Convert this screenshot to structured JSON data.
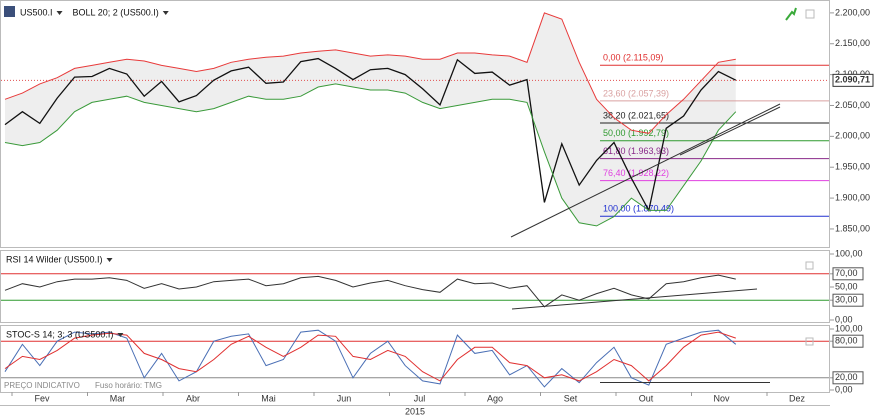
{
  "chart_data": [
    {
      "type": "line",
      "title": "US500.I",
      "indicator": "BOLL 20; 2 (US500.I)",
      "ylim": [
        1824,
        2216
      ],
      "yticks": [
        {
          "value": 1850,
          "label": "1.850,00"
        },
        {
          "value": 1900,
          "label": "1.900,00"
        },
        {
          "value": 1950,
          "label": "1.950,00"
        },
        {
          "value": 2000,
          "label": "2.000,00"
        },
        {
          "value": 2050,
          "label": "2.050,00"
        },
        {
          "value": 2100,
          "label": "2.100,00"
        },
        {
          "value": 2150,
          "label": "2.150,00"
        },
        {
          "value": 2200,
          "label": "2.200,00"
        }
      ],
      "series": [
        {
          "color": "#111111",
          "values": [
            2019,
            2040,
            2021,
            2062,
            2096,
            2097,
            2110,
            2101,
            2065,
            2089,
            2056,
            2066,
            2091,
            2106,
            2112,
            2086,
            2088,
            2121,
            2126,
            2110,
            2092,
            2108,
            2110,
            2100,
            2077,
            2051,
            2124,
            2102,
            2104,
            2083,
            2092,
            1893,
            1988,
            1921,
            1961,
            1990,
            1932,
            1880,
            2013,
            2033,
            2075,
            2105,
            2091
          ]
        },
        {
          "color": "#e83a3a",
          "values": [
            2060,
            2070,
            2085,
            2095,
            2110,
            2115,
            2120,
            2125,
            2122,
            2115,
            2110,
            2105,
            2110,
            2120,
            2125,
            2128,
            2130,
            2135,
            2138,
            2140,
            2135,
            2130,
            2132,
            2130,
            2125,
            2125,
            2135,
            2135,
            2132,
            2130,
            2120,
            2200,
            2190,
            2120,
            2060,
            2030,
            2010,
            2005,
            2035,
            2060,
            2090,
            2120,
            2125
          ]
        },
        {
          "color": "#3a9a3a",
          "values": [
            1990,
            1985,
            1990,
            2010,
            2040,
            2055,
            2060,
            2065,
            2055,
            2050,
            2045,
            2040,
            2045,
            2055,
            2065,
            2060,
            2060,
            2065,
            2080,
            2085,
            2080,
            2075,
            2075,
            2070,
            2055,
            2045,
            2050,
            2055,
            2060,
            2060,
            2055,
            1975,
            1900,
            1860,
            1855,
            1870,
            1900,
            1880,
            1880,
            1920,
            1960,
            2010,
            2040
          ]
        }
      ],
      "band_fill": "#eeeeee",
      "last_price": {
        "value": 2090.71,
        "label": "2.090,71"
      },
      "fib_levels": [
        {
          "label": "0,00 (2.115,09)",
          "value": 2115.09,
          "color": "#e03030"
        },
        {
          "label": "23,60 (2.057,39)",
          "value": 2057.39,
          "color": "#d9a0a0"
        },
        {
          "label": "38,20 (2.021,65)",
          "value": 2021.65,
          "color": "#222222"
        },
        {
          "label": "50,00 (1.992,79)",
          "value": 1992.79,
          "color": "#2f9a2f"
        },
        {
          "label": "61,80 (1.963,93)",
          "value": 1963.93,
          "color": "#8a2a8a"
        },
        {
          "label": "76,40 (1.928,22)",
          "value": 1928.22,
          "color": "#e040e0"
        },
        {
          "label": "100,00 (1.870,49)",
          "value": 1870.49,
          "color": "#2030d0"
        }
      ]
    },
    {
      "type": "line",
      "title": "RSI 14 Wilder (US500.I)",
      "ylim": [
        0,
        100
      ],
      "yticks": [
        {
          "value": 0,
          "label": "0,00"
        },
        {
          "value": 30,
          "label": "30,00"
        },
        {
          "value": 50,
          "label": "50,00"
        },
        {
          "value": 70,
          "label": "70,00"
        },
        {
          "value": 100,
          "label": "100,00"
        }
      ],
      "ref_lines": [
        {
          "value": 70,
          "color": "#e03030"
        },
        {
          "value": 30,
          "color": "#2f9a2f"
        }
      ],
      "series": [
        {
          "color": "#333333",
          "values": [
            45,
            55,
            50,
            58,
            62,
            62,
            64,
            60,
            48,
            55,
            47,
            50,
            58,
            60,
            62,
            52,
            55,
            64,
            66,
            60,
            50,
            56,
            60,
            52,
            46,
            42,
            62,
            55,
            56,
            48,
            52,
            20,
            38,
            30,
            40,
            48,
            38,
            32,
            55,
            58,
            64,
            68,
            62
          ]
        }
      ]
    },
    {
      "type": "line",
      "title": "STOC-S 14; 3; 3 (US500.I)",
      "ylim": [
        0,
        100
      ],
      "yticks": [
        {
          "value": 0,
          "label": "0,00"
        },
        {
          "value": 20,
          "label": "20,00"
        },
        {
          "value": 80,
          "label": "80,00"
        },
        {
          "value": 100,
          "label": "100,00"
        }
      ],
      "ref_lines": [
        {
          "value": 80,
          "color": "#e03030"
        },
        {
          "value": 20,
          "color": "#888888"
        }
      ],
      "series": [
        {
          "color": "#4a6fb5",
          "values": [
            30,
            75,
            40,
            80,
            95,
            92,
            95,
            85,
            20,
            60,
            15,
            30,
            80,
            88,
            92,
            40,
            50,
            95,
            98,
            80,
            20,
            60,
            80,
            40,
            15,
            10,
            90,
            60,
            65,
            25,
            40,
            5,
            35,
            12,
            45,
            70,
            20,
            8,
            75,
            85,
            95,
            98,
            75
          ]
        },
        {
          "color": "#e03030",
          "values": [
            35,
            55,
            50,
            65,
            85,
            90,
            93,
            90,
            60,
            50,
            35,
            30,
            50,
            75,
            88,
            70,
            55,
            70,
            90,
            88,
            55,
            50,
            65,
            55,
            30,
            15,
            50,
            70,
            70,
            45,
            40,
            20,
            25,
            15,
            30,
            50,
            40,
            15,
            40,
            70,
            90,
            95,
            85
          ]
        }
      ]
    }
  ],
  "x_axis": {
    "categories": [
      "Fev",
      "Mar",
      "Abr",
      "Mai",
      "Jun",
      "Jul",
      "Ago",
      "Set",
      "Out",
      "Nov",
      "Dez"
    ],
    "year": "2015"
  },
  "footer": {
    "left": "PREÇO INDICATIVO",
    "right": "Fuso horário: TMG"
  }
}
